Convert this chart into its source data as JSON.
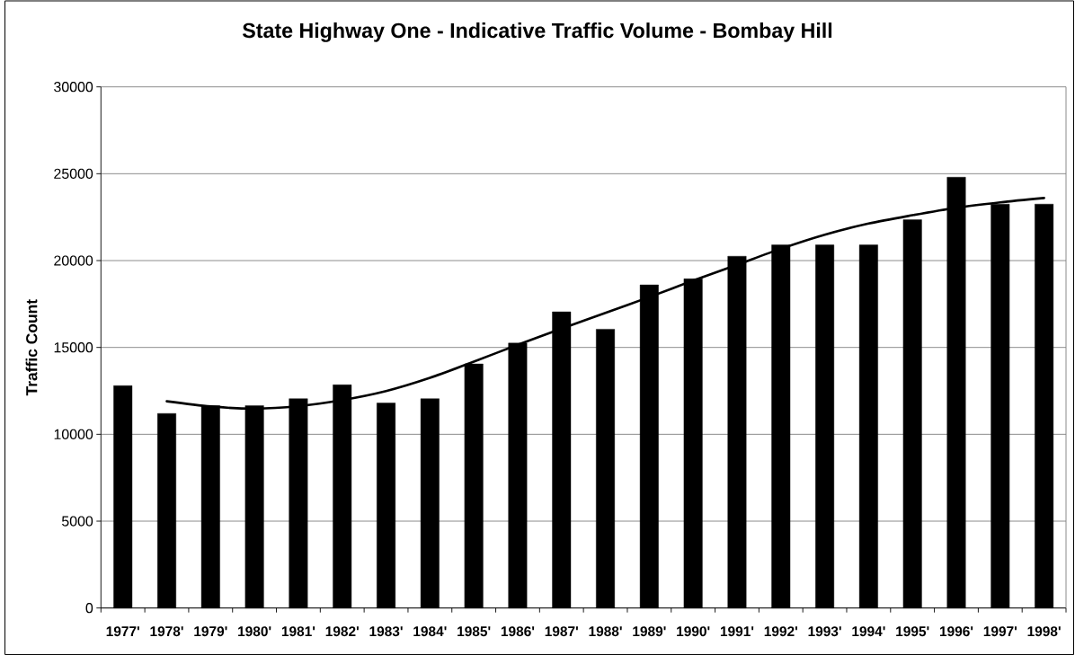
{
  "chart_data": {
    "type": "bar",
    "title": "State Highway One - Indicative Traffic Volume - Bombay Hill",
    "ylabel": "Traffic Count",
    "categories": [
      "1977'",
      "1978'",
      "1979'",
      "1980'",
      "1981'",
      "1982'",
      "1983'",
      "1984'",
      "1985'",
      "1986'",
      "1987'",
      "1988'",
      "1989'",
      "1990'",
      "1991'",
      "1992'",
      "1993'",
      "1994'",
      "1995'",
      "1996'",
      "1997'",
      "1998'"
    ],
    "series": [
      {
        "color": "#000000",
        "values": [
          12800,
          11200,
          11650,
          11650,
          12050,
          12850,
          11800,
          12050,
          14050,
          15250,
          17050,
          16050,
          18600,
          18950,
          20250,
          20900,
          20900,
          20900,
          22350,
          24800,
          23250,
          23250
        ]
      },
      {
        "type": "line",
        "color": "#000000",
        "values": [
          null,
          11900,
          11600,
          11480,
          11620,
          11970,
          12490,
          13250,
          14180,
          15150,
          16080,
          16990,
          17900,
          18850,
          19760,
          20680,
          21490,
          22130,
          22610,
          23040,
          23350,
          23600
        ]
      }
    ],
    "ylim": [
      0,
      30000
    ],
    "yticks": [
      0,
      5000,
      10000,
      15000,
      20000,
      25000,
      30000
    ],
    "grid": "y"
  }
}
